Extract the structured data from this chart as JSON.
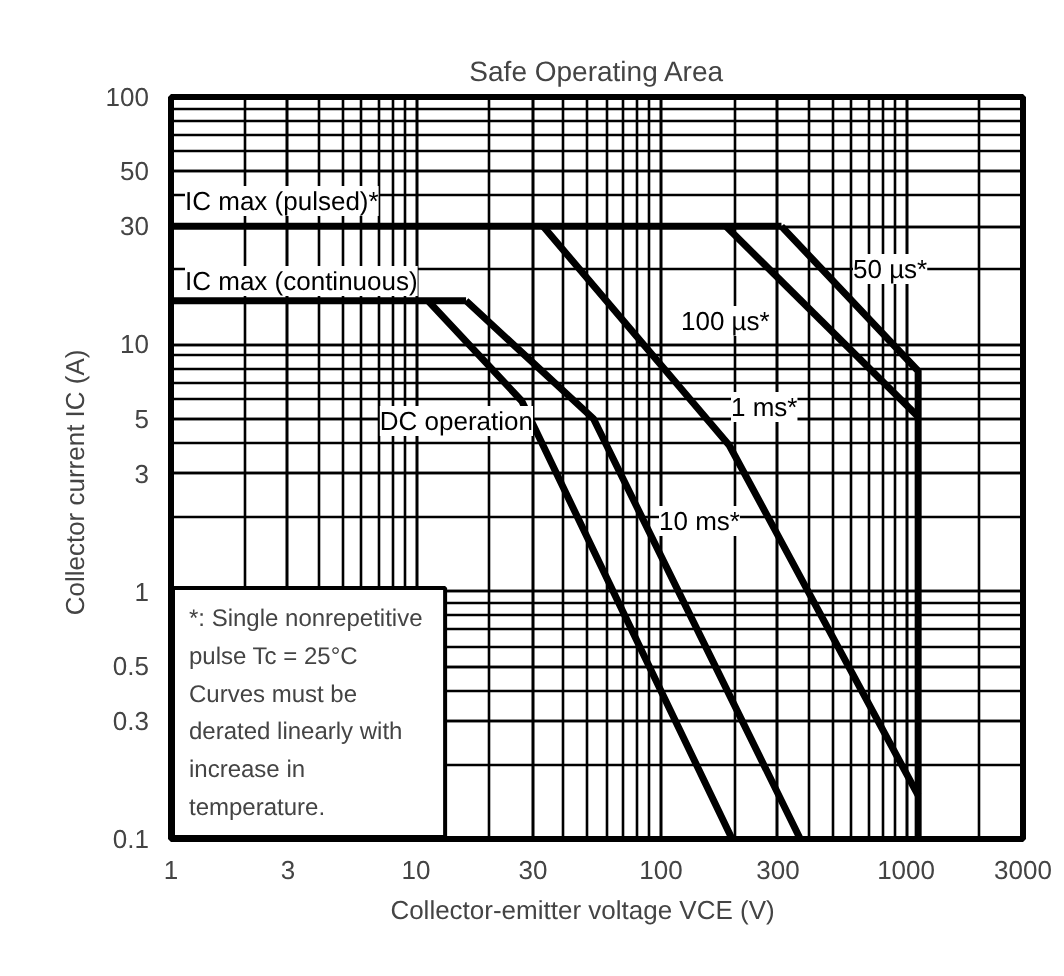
{
  "chart_data": {
    "type": "line",
    "title": "Safe Operating Area",
    "xlabel": "Collector-emitter voltage   VCE   (V)",
    "ylabel": "Collector current   IC   (A)",
    "log": "xy",
    "xlim": [
      1,
      3000
    ],
    "ylim": [
      0.1,
      100
    ],
    "xticks": [
      1,
      3,
      10,
      30,
      100,
      300,
      1000,
      3000
    ],
    "yticks": [
      0.1,
      0.3,
      0.5,
      1,
      3,
      5,
      10,
      30,
      50,
      100
    ],
    "grid": true,
    "legend": false,
    "marker": "none",
    "line_style": "solid",
    "series": [
      {
        "name": "IC max (pulsed)*",
        "color": "#000000",
        "x": [
          1,
          310
        ],
        "values": [
          30,
          30
        ]
      },
      {
        "name": "50 µs*",
        "color": "#000000",
        "x": [
          310,
          1120,
          1120
        ],
        "values": [
          30,
          7.8,
          0.1
        ]
      },
      {
        "name": "100 µs*",
        "color": "#000000",
        "x": [
          184,
          1120
        ],
        "values": [
          30,
          5.1
        ]
      },
      {
        "name": "1 ms*",
        "color": "#000000",
        "x": [
          33,
          190,
          1120
        ],
        "values": [
          30,
          3.9,
          0.15
        ]
      },
      {
        "name": "IC max (continuous)",
        "color": "#000000",
        "x": [
          1,
          16
        ],
        "values": [
          15,
          15
        ]
      },
      {
        "name": "DC operation",
        "color": "#000000",
        "x": [
          11.2,
          27,
          195
        ],
        "values": [
          15,
          5.9,
          0.1
        ]
      },
      {
        "name": "10 ms*",
        "color": "#000000",
        "x": [
          16,
          53,
          370
        ],
        "values": [
          15,
          5,
          0.1
        ]
      }
    ],
    "annotations": [
      "*: Single nonrepetitive\n    pulse    Tc = 25°C\n    Curves must be\n    derated linearly with\n    increase in\n    temperature."
    ]
  }
}
